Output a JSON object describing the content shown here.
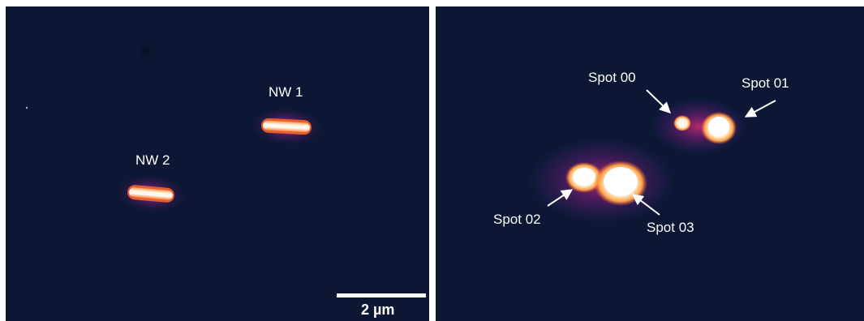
{
  "left_panel": {
    "labels": {
      "nw1": "NW 1",
      "nw2": "NW 2"
    },
    "scale_bar": {
      "label": "2 µm"
    }
  },
  "right_panel": {
    "labels": {
      "spot00": "Spot 00",
      "spot01": "Spot 01",
      "spot02": "Spot 02",
      "spot03": "Spot 03"
    }
  },
  "colors": {
    "background": "#0b1733",
    "hot_core": "#fff6e8",
    "glow_orange": "#ff8a3a",
    "glow_magenta": "#b1227c",
    "glow_purple": "#4a1f6e",
    "annotation": "#ffffff"
  }
}
